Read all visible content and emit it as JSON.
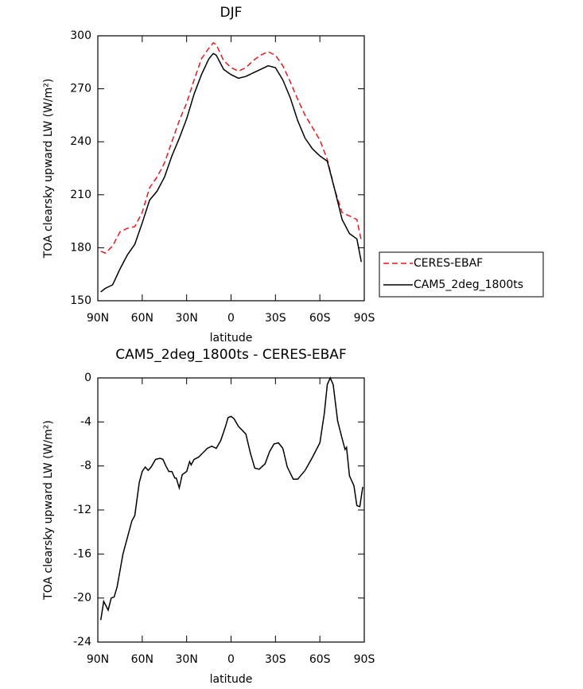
{
  "chart_data": [
    {
      "type": "line",
      "title": "DJF",
      "xlabel": "latitude",
      "ylabel": "TOA clearsky upward LW (W/m²)",
      "xlim": [
        90,
        -90
      ],
      "ylim": [
        150,
        300
      ],
      "xticks": [
        {
          "value": 90,
          "label": "90N"
        },
        {
          "value": 60,
          "label": "60N"
        },
        {
          "value": 30,
          "label": "30N"
        },
        0,
        {
          "value": -30,
          "label": "30S"
        },
        {
          "value": -60,
          "label": "60S"
        },
        {
          "value": -90,
          "label": "90S"
        }
      ],
      "yticks": [
        150,
        180,
        210,
        240,
        270,
        300
      ],
      "x": [
        88,
        85,
        80,
        75,
        70,
        65,
        60,
        55,
        50,
        45,
        40,
        35,
        30,
        25,
        20,
        15,
        12,
        10,
        5,
        0,
        -5,
        -10,
        -15,
        -20,
        -25,
        -30,
        -35,
        -40,
        -45,
        -50,
        -55,
        -60,
        -65,
        -70,
        -75,
        -80,
        -85,
        -88
      ],
      "series": [
        {
          "name": "CERES-EBAF",
          "color": "#e41a1c",
          "dashed": true,
          "values": [
            178,
            177,
            181,
            189,
            191,
            192,
            200,
            214,
            220,
            228,
            240,
            252,
            262,
            275,
            287,
            293,
            296,
            295,
            286,
            282,
            280,
            282,
            286,
            289,
            291,
            289,
            283,
            274,
            264,
            255,
            248,
            241,
            230,
            213,
            200,
            198,
            196,
            184
          ]
        },
        {
          "name": "CAM5_2deg_1800ts",
          "color": "#000000",
          "dashed": false,
          "values": [
            155,
            157,
            159,
            168,
            176,
            182,
            194,
            207,
            212,
            220,
            232,
            242,
            253,
            267,
            278,
            287,
            290,
            289,
            281,
            278,
            276,
            277,
            279,
            281,
            283,
            282,
            275,
            265,
            252,
            242,
            236,
            232,
            229,
            213,
            196,
            188,
            185,
            172
          ]
        }
      ]
    },
    {
      "type": "line",
      "title": "CAM5_2deg_1800ts - CERES-EBAF",
      "xlabel": "latitude",
      "ylabel": "TOA clearsky upward LW (W/m²)",
      "xlim": [
        90,
        -90
      ],
      "ylim": [
        -24,
        0
      ],
      "xticks": [
        {
          "value": 90,
          "label": "90N"
        },
        {
          "value": 60,
          "label": "60N"
        },
        {
          "value": 30,
          "label": "30N"
        },
        0,
        {
          "value": -30,
          "label": "30S"
        },
        {
          "value": -60,
          "label": "60S"
        },
        {
          "value": -90,
          "label": "90S"
        }
      ],
      "yticks": [
        -24,
        -20,
        -16,
        -12,
        -8,
        -4,
        0
      ],
      "x": [
        88,
        86,
        83,
        81,
        79,
        77,
        75,
        73,
        70,
        67,
        65,
        62,
        60,
        58,
        56,
        54,
        51,
        48,
        46,
        44,
        42,
        40,
        38,
        37,
        35,
        33,
        30,
        28,
        27,
        25,
        22,
        19,
        16,
        13,
        10,
        7,
        4,
        2,
        0,
        -2,
        -5,
        -10,
        -13,
        -16,
        -19,
        -23,
        -26,
        -29,
        -32,
        -35,
        -38,
        -42,
        -45,
        -50,
        -55,
        -60,
        -63,
        -65,
        -67,
        -69,
        -72,
        -75,
        -77,
        -78,
        -80,
        -83,
        -85,
        -87,
        -89
      ],
      "series": [
        {
          "name": "CAM5_2deg_1800ts - CERES-EBAF",
          "color": "#000000",
          "dashed": false,
          "values": [
            -22,
            -20.3,
            -21.1,
            -20,
            -19.9,
            -19,
            -17.5,
            -16,
            -14.5,
            -13,
            -12.5,
            -9.5,
            -8.5,
            -8.1,
            -8.4,
            -8.1,
            -7.4,
            -7.3,
            -7.4,
            -8,
            -8.5,
            -8.5,
            -9.1,
            -9.1,
            -10,
            -8.8,
            -8.5,
            -7.6,
            -7.9,
            -7.4,
            -7.2,
            -6.8,
            -6.4,
            -6.2,
            -6.4,
            -5.7,
            -4.5,
            -3.6,
            -3.5,
            -3.7,
            -4.4,
            -5.1,
            -6.8,
            -8.2,
            -8.3,
            -7.8,
            -6.7,
            -6.0,
            -5.9,
            -6.4,
            -8.1,
            -9.2,
            -9.2,
            -8.4,
            -7.2,
            -5.9,
            -3.2,
            -0.6,
            0,
            -0.6,
            -3.9,
            -5.5,
            -6.5,
            -6.3,
            -8.9,
            -9.8,
            -11.6,
            -11.7,
            -9.9
          ]
        }
      ]
    }
  ]
}
